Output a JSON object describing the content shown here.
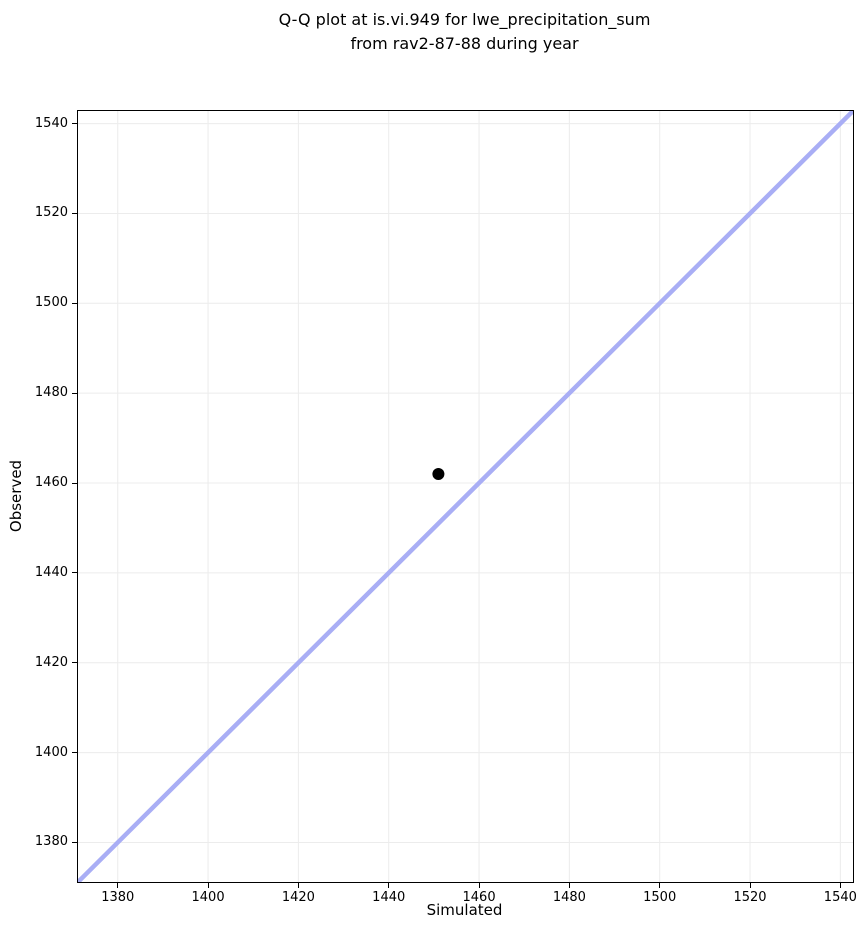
{
  "chart_data": {
    "type": "scatter",
    "title": "Q-Q plot at is.vi.949 for lwe_precipitation_sum\nfrom rav2-87-88 during year",
    "xlabel": "Simulated",
    "ylabel": "Observed",
    "xlim": [
      1371.2,
      1542.8
    ],
    "ylim": [
      1371.2,
      1542.8
    ],
    "xticks": [
      1380,
      1400,
      1420,
      1440,
      1460,
      1480,
      1500,
      1520,
      1540
    ],
    "yticks": [
      1380,
      1400,
      1420,
      1440,
      1460,
      1480,
      1500,
      1520,
      1540
    ],
    "grid": true,
    "legend": "none",
    "points": [
      {
        "x": 1451,
        "y": 1462
      }
    ],
    "reference_line": {
      "kind": "identity",
      "from": 1371.2,
      "to": 1542.8
    },
    "colors": {
      "reference_line": "#a9aef5",
      "point": "#000000",
      "grid": "#ececec",
      "spine": "#000000",
      "text": "#000000",
      "background": "#ffffff"
    },
    "style": {
      "point_radius": 6,
      "reference_line_width": 4.5,
      "grid_line_width": 1
    }
  }
}
